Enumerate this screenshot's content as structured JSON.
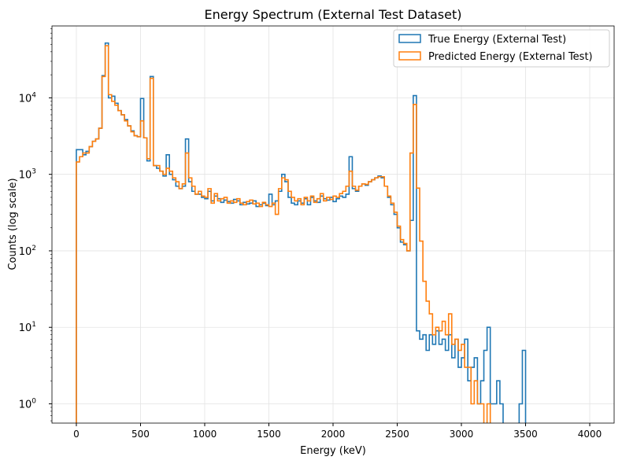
{
  "chart_data": {
    "type": "histogram-step",
    "title": "Energy Spectrum (External Test Dataset)",
    "xlabel": "Energy (keV)",
    "ylabel": "Counts (log scale)",
    "xlim": [
      -190,
      4190
    ],
    "ylim": [
      0.56,
      87000
    ],
    "yscale": "log",
    "grid": true,
    "legend_placement": "top-right",
    "x_ticks": [
      0,
      500,
      1000,
      1500,
      2000,
      2500,
      3000,
      3500,
      4000
    ],
    "y_ticks": [
      {
        "value": 1,
        "base": "10",
        "exp": "0"
      },
      {
        "value": 10,
        "base": "10",
        "exp": "1"
      },
      {
        "value": 100,
        "base": "10",
        "exp": "2"
      },
      {
        "value": 1000,
        "base": "10",
        "exp": "3"
      },
      {
        "value": 10000,
        "base": "10",
        "exp": "4"
      }
    ],
    "bin_start": 0,
    "bin_width": 25,
    "series": [
      {
        "name": "True Energy (External Test)",
        "color": "#1f77b4",
        "values": [
          2100,
          2100,
          1800,
          2000,
          2300,
          2700,
          2900,
          4000,
          19500,
          52000,
          10000,
          10500,
          8500,
          6800,
          6000,
          5200,
          4300,
          3700,
          3200,
          3100,
          9800,
          3000,
          1500,
          19000,
          1300,
          1200,
          1100,
          950,
          1800,
          1000,
          850,
          700,
          650,
          700,
          2900,
          800,
          600,
          550,
          550,
          500,
          480,
          600,
          450,
          520,
          480,
          430,
          460,
          440,
          420,
          470,
          450,
          400,
          430,
          410,
          420,
          450,
          380,
          400,
          420,
          390,
          550,
          400,
          450,
          600,
          1000,
          800,
          500,
          420,
          400,
          450,
          420,
          480,
          400,
          500,
          450,
          430,
          520,
          480,
          460,
          500,
          440,
          480,
          520,
          500,
          550,
          1700,
          650,
          600,
          700,
          750,
          720,
          800,
          850,
          900,
          950,
          900,
          700,
          500,
          400,
          300,
          200,
          130,
          120,
          100,
          250,
          10700,
          9,
          7,
          8,
          5,
          8,
          6,
          9,
          6,
          7,
          5,
          8,
          4,
          7,
          3,
          4,
          7,
          2,
          3,
          4,
          1,
          2,
          5,
          10,
          1,
          1,
          2,
          1,
          0,
          0,
          0,
          0,
          0,
          1,
          5,
          0
        ]
      },
      {
        "name": "Predicted Energy (External Test)",
        "color": "#ff7f0e",
        "values": [
          1450,
          1700,
          1900,
          1900,
          2300,
          2700,
          2900,
          4000,
          19000,
          48000,
          11000,
          9000,
          8000,
          6800,
          6000,
          5000,
          4300,
          3600,
          3200,
          3100,
          5000,
          3000,
          1600,
          18000,
          1300,
          1300,
          1100,
          1000,
          1200,
          1100,
          900,
          800,
          650,
          750,
          1900,
          900,
          700,
          550,
          600,
          520,
          500,
          650,
          420,
          560,
          450,
          480,
          500,
          420,
          450,
          430,
          480,
          420,
          400,
          440,
          460,
          410,
          420,
          380,
          430,
          400,
          380,
          420,
          300,
          650,
          900,
          850,
          600,
          500,
          450,
          480,
          400,
          500,
          450,
          520,
          430,
          480,
          560,
          450,
          500,
          470,
          520,
          500,
          560,
          600,
          700,
          1100,
          700,
          620,
          700,
          750,
          740,
          800,
          850,
          900,
          930,
          930,
          700,
          520,
          420,
          320,
          210,
          140,
          125,
          100,
          1900,
          8200,
          660,
          134,
          40,
          22,
          15,
          8,
          10,
          9,
          12,
          8,
          15,
          6,
          7,
          5,
          6,
          3,
          3,
          1,
          2,
          1,
          1,
          0,
          1,
          0,
          0,
          0,
          0,
          0,
          0,
          0,
          0,
          0,
          0,
          0,
          0,
          0
        ]
      }
    ]
  }
}
